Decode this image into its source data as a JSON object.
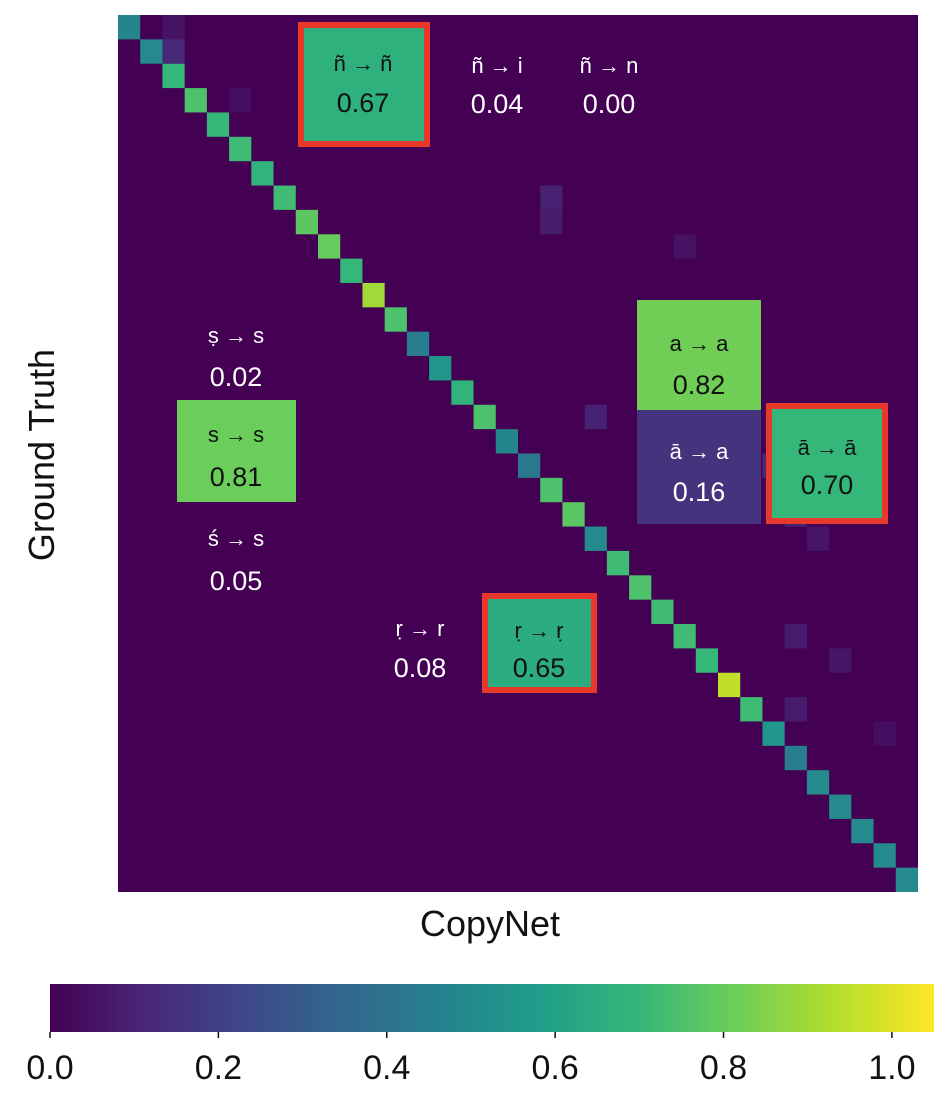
{
  "chart_data": {
    "type": "heatmap",
    "xlabel": "CopyNet",
    "ylabel": "Ground Truth",
    "size": 36,
    "colorbar": {
      "min": 0.0,
      "max": 1.05,
      "ticks": [
        "0.0",
        "0.2",
        "0.4",
        "0.6",
        "0.8",
        "1.0"
      ],
      "tick_values": [
        0.0,
        0.2,
        0.4,
        0.6,
        0.8,
        1.0
      ],
      "colors": [
        "#440154",
        "#482878",
        "#3e4989",
        "#31688e",
        "#26828e",
        "#1f9e89",
        "#35b779",
        "#6ece58",
        "#b5de2b",
        "#fde725"
      ]
    },
    "background_value": 0.0,
    "diagonal": [
      0.48,
      0.5,
      0.7,
      0.75,
      0.7,
      0.72,
      0.68,
      0.72,
      0.78,
      0.8,
      0.7,
      0.9,
      0.75,
      0.45,
      0.55,
      0.68,
      0.75,
      0.48,
      0.42,
      0.75,
      0.78,
      0.5,
      0.72,
      0.75,
      0.72,
      0.72,
      0.7,
      0.95,
      0.72,
      0.55,
      0.45,
      0.5,
      0.5,
      0.5,
      0.5,
      0.5
    ],
    "off_diagonal": [
      {
        "row": 0,
        "col": 2,
        "value": 0.05
      },
      {
        "row": 1,
        "col": 2,
        "value": 0.12
      },
      {
        "row": 3,
        "col": 5,
        "value": 0.04
      },
      {
        "row": 7,
        "col": 19,
        "value": 0.1
      },
      {
        "row": 8,
        "col": 19,
        "value": 0.08
      },
      {
        "row": 9,
        "col": 25,
        "value": 0.05
      },
      {
        "row": 16,
        "col": 21,
        "value": 0.1
      },
      {
        "row": 18,
        "col": 29,
        "value": 0.12
      },
      {
        "row": 19,
        "col": 30,
        "value": 0.1
      },
      {
        "row": 20,
        "col": 30,
        "value": 0.1
      },
      {
        "row": 21,
        "col": 31,
        "value": 0.06
      },
      {
        "row": 25,
        "col": 30,
        "value": 0.08
      },
      {
        "row": 26,
        "col": 32,
        "value": 0.06
      },
      {
        "row": 28,
        "col": 30,
        "value": 0.08
      },
      {
        "row": 29,
        "col": 34,
        "value": 0.04
      }
    ],
    "annotations": [
      {
        "id": "n-tilde-copy",
        "label": "ñ → ñ",
        "value": "0.67",
        "cell_value": 0.67,
        "highlight": true
      },
      {
        "id": "n-tilde-to-i",
        "label": "ñ → i",
        "value": "0.04"
      },
      {
        "id": "n-tilde-to-n",
        "label": "ñ → n",
        "value": "0.00"
      },
      {
        "id": "a-copy",
        "label": "a → a",
        "value": "0.82",
        "cell_value": 0.82,
        "highlight": false
      },
      {
        "id": "a-macron-to-a",
        "label": "ā → a",
        "value": "0.16",
        "cell_value": 0.16,
        "highlight": false
      },
      {
        "id": "a-macron-copy",
        "label": "ā → ā",
        "value": "0.70",
        "cell_value": 0.7,
        "highlight": true
      },
      {
        "id": "s-dot-to-s",
        "label": "ṣ → s",
        "value": "0.02"
      },
      {
        "id": "s-copy",
        "label": "s → s",
        "value": "0.81",
        "cell_value": 0.81,
        "highlight": false
      },
      {
        "id": "s-acute-to-s",
        "label": "ś → s",
        "value": "0.05"
      },
      {
        "id": "r-dot-to-r",
        "label": "ṛ → r",
        "value": "0.08"
      },
      {
        "id": "r-dot-copy",
        "label": "ṛ → ṛ",
        "value": "0.65",
        "cell_value": 0.65,
        "highlight": true
      }
    ],
    "highlight_color": "#e8372b"
  }
}
